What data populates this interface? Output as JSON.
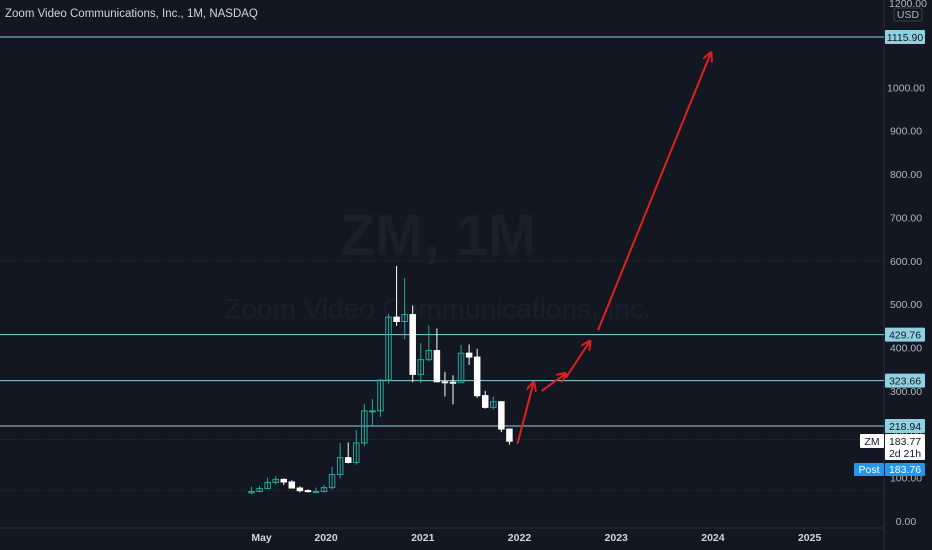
{
  "header": {
    "title": "Zoom Video Communications, Inc., 1M, NASDAQ"
  },
  "watermark": {
    "symbol_tf": "ZM, 1M",
    "name": "Zoom Video Communications, Inc."
  },
  "colors": {
    "background": "#131722",
    "up_candle": "#26a69a",
    "down_candle": "#ffffff",
    "level_line": "#8fd1e0",
    "arrow": "#e02020",
    "post_tag": "#2196f3"
  },
  "price_axis": {
    "currency_top": "1200.00",
    "currency": "USD",
    "ticks": [
      "1000.00",
      "900.00",
      "800.00",
      "700.00",
      "600.00",
      "500.00",
      "400.00",
      "300.00",
      "200.00",
      "100.00",
      "0.00"
    ]
  },
  "time_axis": {
    "labels": [
      "May",
      "2020",
      "2021",
      "2022",
      "2023",
      "2024",
      "2025"
    ]
  },
  "tags": {
    "symbol": "ZM",
    "last_price": "183.77",
    "countdown": "2d 21h",
    "post_label": "Post",
    "post_price": "183.76"
  },
  "chart_data": {
    "type": "candlestick",
    "title": "Zoom Video Communications, Inc., 1M, NASDAQ",
    "ylim": [
      0,
      1200
    ],
    "levels": [
      1115.9,
      429.76,
      323.66,
      218.94
    ],
    "level_labels": [
      "1115.90",
      "429.76",
      "323.66",
      "218.94"
    ],
    "dotted_levels": [
      600,
      188,
      70
    ],
    "candles": [
      {
        "date": "2019-04",
        "o": 65,
        "h": 79,
        "l": 62,
        "c": 68
      },
      {
        "date": "2019-05",
        "o": 68,
        "h": 81,
        "l": 66,
        "c": 75
      },
      {
        "date": "2019-06",
        "o": 75,
        "h": 100,
        "l": 73,
        "c": 89
      },
      {
        "date": "2019-07",
        "o": 89,
        "h": 103,
        "l": 84,
        "c": 96
      },
      {
        "date": "2019-08",
        "o": 96,
        "h": 98,
        "l": 83,
        "c": 90
      },
      {
        "date": "2019-09",
        "o": 90,
        "h": 94,
        "l": 83,
        "c": 76
      },
      {
        "date": "2019-10",
        "o": 76,
        "h": 80,
        "l": 66,
        "c": 70
      },
      {
        "date": "2019-11",
        "o": 70,
        "h": 73,
        "l": 66,
        "c": 68
      },
      {
        "date": "2019-12",
        "o": 68,
        "h": 77,
        "l": 64,
        "c": 68
      },
      {
        "date": "2020-01",
        "o": 68,
        "h": 83,
        "l": 66,
        "c": 77
      },
      {
        "date": "2020-02",
        "o": 77,
        "h": 125,
        "l": 73,
        "c": 107
      },
      {
        "date": "2020-03",
        "o": 107,
        "h": 180,
        "l": 98,
        "c": 146
      },
      {
        "date": "2020-04",
        "o": 146,
        "h": 181,
        "l": 133,
        "c": 135
      },
      {
        "date": "2020-05",
        "o": 135,
        "h": 210,
        "l": 130,
        "c": 180
      },
      {
        "date": "2020-06",
        "o": 180,
        "h": 270,
        "l": 172,
        "c": 254
      },
      {
        "date": "2020-07",
        "o": 254,
        "h": 281,
        "l": 217,
        "c": 254
      },
      {
        "date": "2020-08",
        "o": 254,
        "h": 327,
        "l": 240,
        "c": 325
      },
      {
        "date": "2020-09",
        "o": 325,
        "h": 478,
        "l": 317,
        "c": 470
      },
      {
        "date": "2020-10",
        "o": 470,
        "h": 588,
        "l": 450,
        "c": 460
      },
      {
        "date": "2020-11",
        "o": 460,
        "h": 560,
        "l": 419,
        "c": 476
      },
      {
        "date": "2020-12",
        "o": 476,
        "h": 497,
        "l": 320,
        "c": 338
      },
      {
        "date": "2021-01",
        "o": 338,
        "h": 410,
        "l": 318,
        "c": 372
      },
      {
        "date": "2021-02",
        "o": 372,
        "h": 451,
        "l": 368,
        "c": 393
      },
      {
        "date": "2021-03",
        "o": 393,
        "h": 444,
        "l": 320,
        "c": 321
      },
      {
        "date": "2021-04",
        "o": 321,
        "h": 344,
        "l": 287,
        "c": 320
      },
      {
        "date": "2021-05",
        "o": 320,
        "h": 336,
        "l": 269,
        "c": 319
      },
      {
        "date": "2021-06",
        "o": 319,
        "h": 406,
        "l": 318,
        "c": 387
      },
      {
        "date": "2021-07",
        "o": 387,
        "h": 407,
        "l": 360,
        "c": 378
      },
      {
        "date": "2021-08",
        "o": 378,
        "h": 397,
        "l": 284,
        "c": 289
      },
      {
        "date": "2021-09",
        "o": 289,
        "h": 300,
        "l": 259,
        "c": 262
      },
      {
        "date": "2021-10",
        "o": 262,
        "h": 287,
        "l": 257,
        "c": 275
      },
      {
        "date": "2021-11",
        "o": 275,
        "h": 276,
        "l": 205,
        "c": 212
      },
      {
        "date": "2021-12",
        "o": 212,
        "h": 213,
        "l": 176,
        "c": 184
      }
    ],
    "annotations": [
      {
        "kind": "arrow",
        "from": {
          "date": "2022-01",
          "price": 178
        },
        "to": {
          "date": "2022-03",
          "price": 320
        }
      },
      {
        "kind": "arrow",
        "from": {
          "date": "2022-04",
          "price": 300
        },
        "to": {
          "date": "2022-07",
          "price": 340
        }
      },
      {
        "kind": "arrow",
        "from": {
          "date": "2022-07",
          "price": 330
        },
        "to": {
          "date": "2022-10",
          "price": 415
        }
      },
      {
        "kind": "arrow",
        "from": {
          "date": "2022-11",
          "price": 440
        },
        "to": {
          "date": "2024-01",
          "price": 1080
        }
      }
    ]
  }
}
